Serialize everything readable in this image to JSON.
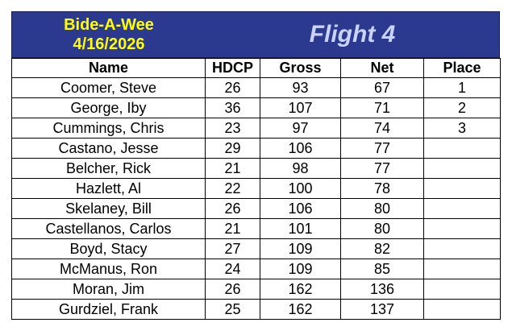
{
  "header": {
    "club": "Bide-A-Wee",
    "date": "4/16/2026",
    "flight": "Flight 4"
  },
  "columns": [
    "Name",
    "HDCP",
    "Gross",
    "Net",
    "Place"
  ],
  "rows": [
    {
      "name": "Coomer, Steve",
      "hdcp": "26",
      "gross": "93",
      "net": "67",
      "place": "1"
    },
    {
      "name": "George, Iby",
      "hdcp": "36",
      "gross": "107",
      "net": "71",
      "place": "2"
    },
    {
      "name": "Cummings, Chris",
      "hdcp": "23",
      "gross": "97",
      "net": "74",
      "place": "3"
    },
    {
      "name": "Castano, Jesse",
      "hdcp": "29",
      "gross": "106",
      "net": "77",
      "place": ""
    },
    {
      "name": "Belcher, Rick",
      "hdcp": "21",
      "gross": "98",
      "net": "77",
      "place": ""
    },
    {
      "name": "Hazlett, Al",
      "hdcp": "22",
      "gross": "100",
      "net": "78",
      "place": ""
    },
    {
      "name": "Skelaney, Bill",
      "hdcp": "26",
      "gross": "106",
      "net": "80",
      "place": ""
    },
    {
      "name": "Castellanos, Carlos",
      "hdcp": "21",
      "gross": "101",
      "net": "80",
      "place": ""
    },
    {
      "name": "Boyd, Stacy",
      "hdcp": "27",
      "gross": "109",
      "net": "82",
      "place": ""
    },
    {
      "name": "McManus, Ron",
      "hdcp": "24",
      "gross": "109",
      "net": "85",
      "place": ""
    },
    {
      "name": "Moran, Jim",
      "hdcp": "26",
      "gross": "162",
      "net": "136",
      "place": ""
    },
    {
      "name": "Gurdziel, Frank",
      "hdcp": "25",
      "gross": "162",
      "net": "137",
      "place": ""
    }
  ],
  "colors": {
    "header_bg": "#2b3a8f",
    "club_text": "#ffff00",
    "flight_text": "#c9d3ff"
  }
}
